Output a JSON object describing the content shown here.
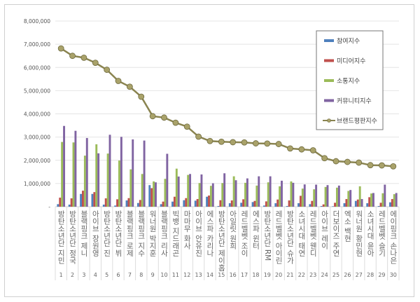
{
  "chart_data": {
    "type": "bar+line",
    "categories": [
      "방탄소년단 지민",
      "방탄소년단 정국",
      "블랙핑크 제니",
      "아이브 장원영",
      "방탄소년단 진",
      "방탄소년단 뷔",
      "블랙핑크 로제",
      "블랙핑크 지수",
      "워너원 박지훈",
      "블랙핑크 리사",
      "빅뱅 지드래곤",
      "마마무 화사",
      "아이브 안유진",
      "에스파 카리나",
      "방탄소년단 제이홉",
      "아일릿 원희",
      "레드벨벳 조이",
      "에스파 윈터",
      "방탄소년단 RM",
      "레드벨벳 아이린",
      "방탄소년단 슈가",
      "소녀시대 태연",
      "레드벨벳 웬디",
      "아이브 레이",
      "더보이즈 주연",
      "엑소 백현",
      "워너원 황민현",
      "소녀시대 윤아",
      "레드벨벳 슬기",
      "에이핑크 손나은"
    ],
    "ranks": [
      1,
      2,
      3,
      4,
      5,
      6,
      7,
      8,
      9,
      10,
      11,
      12,
      13,
      14,
      15,
      16,
      17,
      18,
      19,
      20,
      21,
      22,
      23,
      24,
      25,
      26,
      27,
      28,
      29,
      30
    ],
    "series": [
      {
        "name": "참여지수",
        "type": "bar",
        "color": "#4f81bd",
        "values": [
          110000,
          90000,
          550000,
          550000,
          90000,
          50000,
          270000,
          160000,
          930000,
          110000,
          220000,
          280000,
          260000,
          430000,
          30000,
          150000,
          170000,
          200000,
          50000,
          150000,
          30000,
          150000,
          110000,
          30000,
          20000,
          150000,
          250000,
          150000,
          30000,
          190000
        ]
      },
      {
        "name": "미디어지수",
        "type": "bar",
        "color": "#c0504d",
        "values": [
          390000,
          360000,
          690000,
          630000,
          360000,
          320000,
          370000,
          290000,
          800000,
          220000,
          430000,
          370000,
          330000,
          480000,
          280000,
          270000,
          320000,
          250000,
          230000,
          310000,
          270000,
          470000,
          250000,
          100000,
          170000,
          330000,
          310000,
          410000,
          170000,
          330000
        ]
      },
      {
        "name": "소통지수",
        "type": "bar",
        "color": "#9bbb59",
        "values": [
          2790000,
          2770000,
          2200000,
          2690000,
          2290000,
          1990000,
          1610000,
          1410000,
          1090000,
          1200000,
          1640000,
          1370000,
          1020000,
          900000,
          1020000,
          1310000,
          1030000,
          910000,
          1050000,
          880000,
          1090000,
          780000,
          750000,
          850000,
          820000,
          680000,
          880000,
          570000,
          580000,
          540000
        ]
      },
      {
        "name": "커뮤니티지수",
        "type": "bar",
        "color": "#8064a2",
        "values": [
          3480000,
          3270000,
          2960000,
          2300000,
          3100000,
          3010000,
          2900000,
          2850000,
          1050000,
          2280000,
          1300000,
          1410000,
          1390000,
          1010000,
          1440000,
          1140000,
          1220000,
          1310000,
          1310000,
          1120000,
          1030000,
          960000,
          950000,
          930000,
          910000,
          720000,
          330000,
          590000,
          950000,
          590000
        ]
      },
      {
        "name": "브랜드평판지수",
        "type": "line",
        "color": "#8a8450",
        "values": [
          6820000,
          6500000,
          6420000,
          6200000,
          5900000,
          5420000,
          5170000,
          4740000,
          3900000,
          3840000,
          3620000,
          3450000,
          3020000,
          2830000,
          2800000,
          2780000,
          2770000,
          2730000,
          2720000,
          2700000,
          2510000,
          2470000,
          2430000,
          2090000,
          1960000,
          1930000,
          1900000,
          1790000,
          1780000,
          1740000
        ]
      }
    ],
    "ylim": [
      0,
      8000000
    ],
    "yticks": [
      "-",
      "1,000,000",
      "2,000,000",
      "3,000,000",
      "4,000,000",
      "5,000,000",
      "6,000,000",
      "7,000,000",
      "8,000,000"
    ],
    "grid": true,
    "legend": "top-right"
  }
}
